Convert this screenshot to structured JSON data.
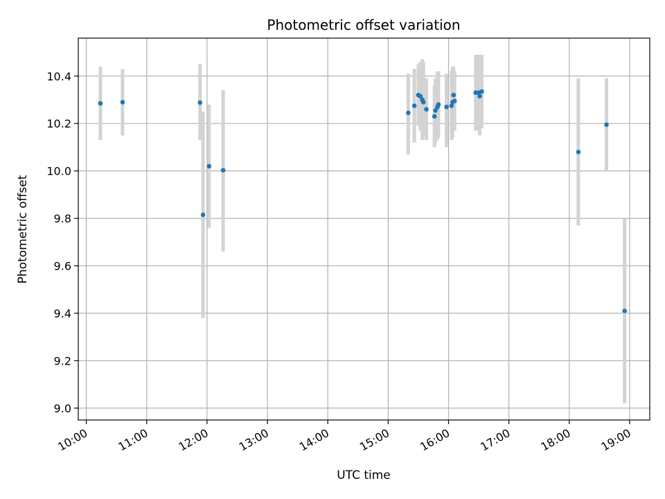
{
  "chart_data": {
    "type": "scatter",
    "title": "Photometric offset variation",
    "xlabel": "UTC time",
    "ylabel": "Photometric offset",
    "grid": true,
    "x_ticks": [
      "10:00",
      "11:00",
      "12:00",
      "13:00",
      "14:00",
      "15:00",
      "16:00",
      "17:00",
      "18:00",
      "19:00"
    ],
    "y_ticks": [
      "9.0",
      "9.2",
      "9.4",
      "9.6",
      "9.8",
      "10.0",
      "10.2",
      "10.4"
    ],
    "xlim": [
      "09:52",
      "19:20"
    ],
    "ylim": [
      8.95,
      10.56
    ],
    "colors": {
      "point": "#1f77b4",
      "errorbar": "#d3d3d3",
      "grid": "#b0b0b0"
    },
    "series": [
      {
        "points": [
          {
            "x": "10:14",
            "y": 10.285,
            "low": 10.13,
            "high": 10.44
          },
          {
            "x": "10:36",
            "y": 10.29,
            "low": 10.15,
            "high": 10.43
          },
          {
            "x": "11:53",
            "y": 10.288,
            "low": 10.13,
            "high": 10.45
          },
          {
            "x": "11:56",
            "y": 9.815,
            "low": 9.38,
            "high": 10.25
          },
          {
            "x": "12:02",
            "y": 10.02,
            "low": 9.76,
            "high": 10.28
          },
          {
            "x": "12:16",
            "y": 10.003,
            "low": 9.66,
            "high": 10.34
          },
          {
            "x": "15:20",
            "y": 10.245,
            "low": 10.07,
            "high": 10.41
          },
          {
            "x": "15:26",
            "y": 10.275,
            "low": 10.12,
            "high": 10.43
          },
          {
            "x": "15:30",
            "y": 10.32,
            "low": 10.19,
            "high": 10.45
          },
          {
            "x": "15:32",
            "y": 10.315,
            "low": 10.17,
            "high": 10.46
          },
          {
            "x": "15:34",
            "y": 10.3,
            "low": 10.13,
            "high": 10.47
          },
          {
            "x": "15:35",
            "y": 10.29,
            "low": 10.15,
            "high": 10.46
          },
          {
            "x": "15:38",
            "y": 10.26,
            "low": 10.13,
            "high": 10.39
          },
          {
            "x": "15:46",
            "y": 10.23,
            "low": 10.1,
            "high": 10.36
          },
          {
            "x": "15:47",
            "y": 10.255,
            "low": 10.12,
            "high": 10.39
          },
          {
            "x": "15:49",
            "y": 10.27,
            "low": 10.13,
            "high": 10.42
          },
          {
            "x": "15:50",
            "y": 10.28,
            "low": 10.14,
            "high": 10.42
          },
          {
            "x": "15:58",
            "y": 10.27,
            "low": 10.1,
            "high": 10.41
          },
          {
            "x": "16:03",
            "y": 10.275,
            "low": 10.13,
            "high": 10.42
          },
          {
            "x": "16:04",
            "y": 10.29,
            "low": 10.14,
            "high": 10.44
          },
          {
            "x": "16:05",
            "y": 10.32,
            "low": 10.19,
            "high": 10.44
          },
          {
            "x": "16:06",
            "y": 10.295,
            "low": 10.17,
            "high": 10.42
          },
          {
            "x": "16:27",
            "y": 10.33,
            "low": 10.17,
            "high": 10.49
          },
          {
            "x": "16:30",
            "y": 10.33,
            "low": 10.17,
            "high": 10.49
          },
          {
            "x": "16:31",
            "y": 10.315,
            "low": 10.15,
            "high": 10.49
          },
          {
            "x": "16:33",
            "y": 10.335,
            "low": 10.18,
            "high": 10.49
          },
          {
            "x": "18:09",
            "y": 10.08,
            "low": 9.77,
            "high": 10.39
          },
          {
            "x": "18:37",
            "y": 10.195,
            "low": 10.0,
            "high": 10.39
          },
          {
            "x": "18:55",
            "y": 9.41,
            "low": 9.02,
            "high": 9.8
          }
        ]
      }
    ]
  }
}
